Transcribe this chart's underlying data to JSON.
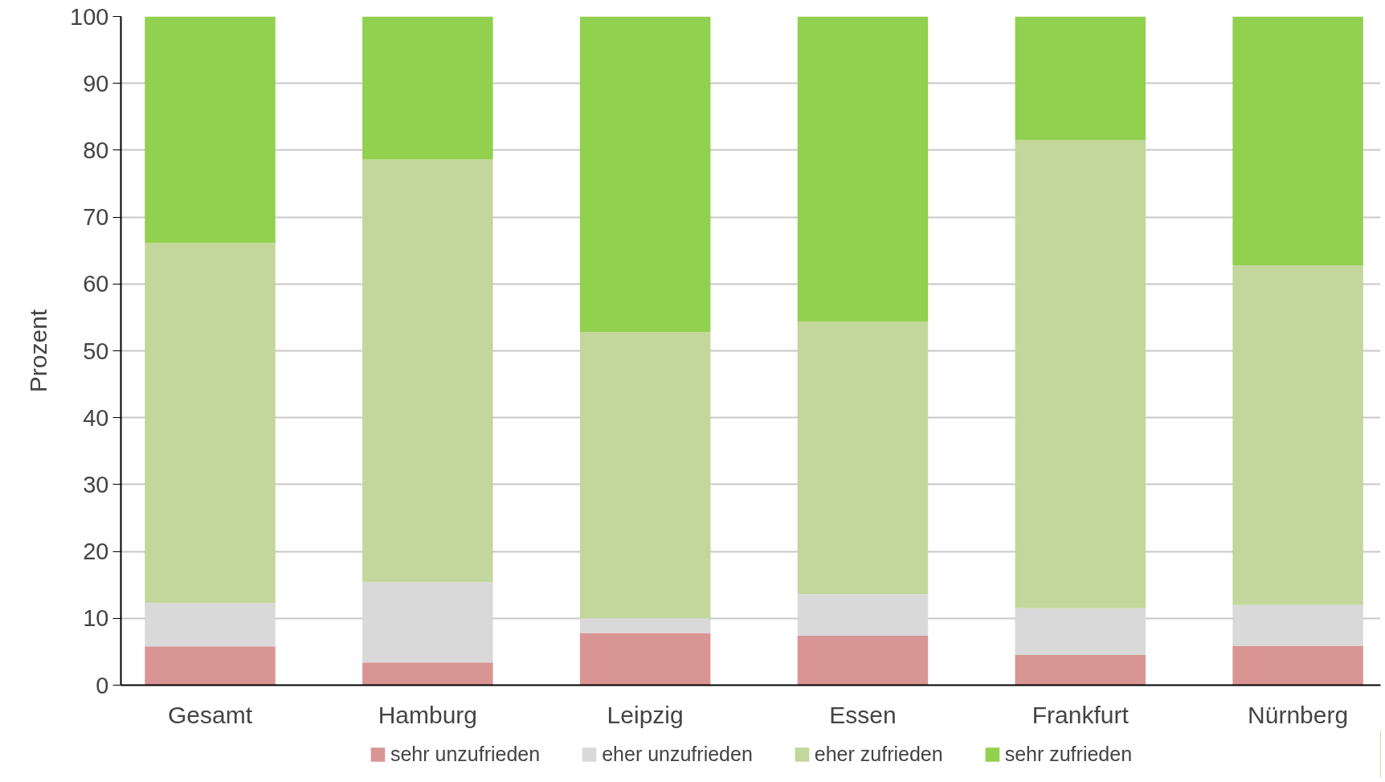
{
  "chart_data": {
    "type": "bar",
    "stacked": true,
    "ylabel": "Prozent",
    "categories": [
      "Gesamt",
      "Hamburg",
      "Leipzig",
      "Essen",
      "Frankfurt",
      "Nürnberg"
    ],
    "series": [
      {
        "name": "sehr unzufrieden",
        "color": "#d99594",
        "values": [
          5.8,
          3.4,
          7.8,
          7.4,
          4.5,
          5.9
        ]
      },
      {
        "name": "eher unzufrieden",
        "color": "#d9d9d9",
        "values": [
          6.5,
          12.0,
          2.2,
          6.2,
          7.0,
          6.1
        ]
      },
      {
        "name": "eher zufrieden",
        "color": "#c3d69b",
        "values": [
          53.8,
          63.2,
          42.8,
          40.8,
          70.0,
          50.8
        ]
      },
      {
        "name": "sehr zufrieden",
        "color": "#92d050",
        "values": [
          33.9,
          21.4,
          47.2,
          45.6,
          18.5,
          37.2
        ]
      }
    ],
    "ylim": [
      0,
      100
    ],
    "yticks": [
      0,
      10,
      20,
      30,
      40,
      50,
      60,
      70,
      80,
      90,
      100
    ],
    "grid": "y",
    "legend": "bottom"
  }
}
